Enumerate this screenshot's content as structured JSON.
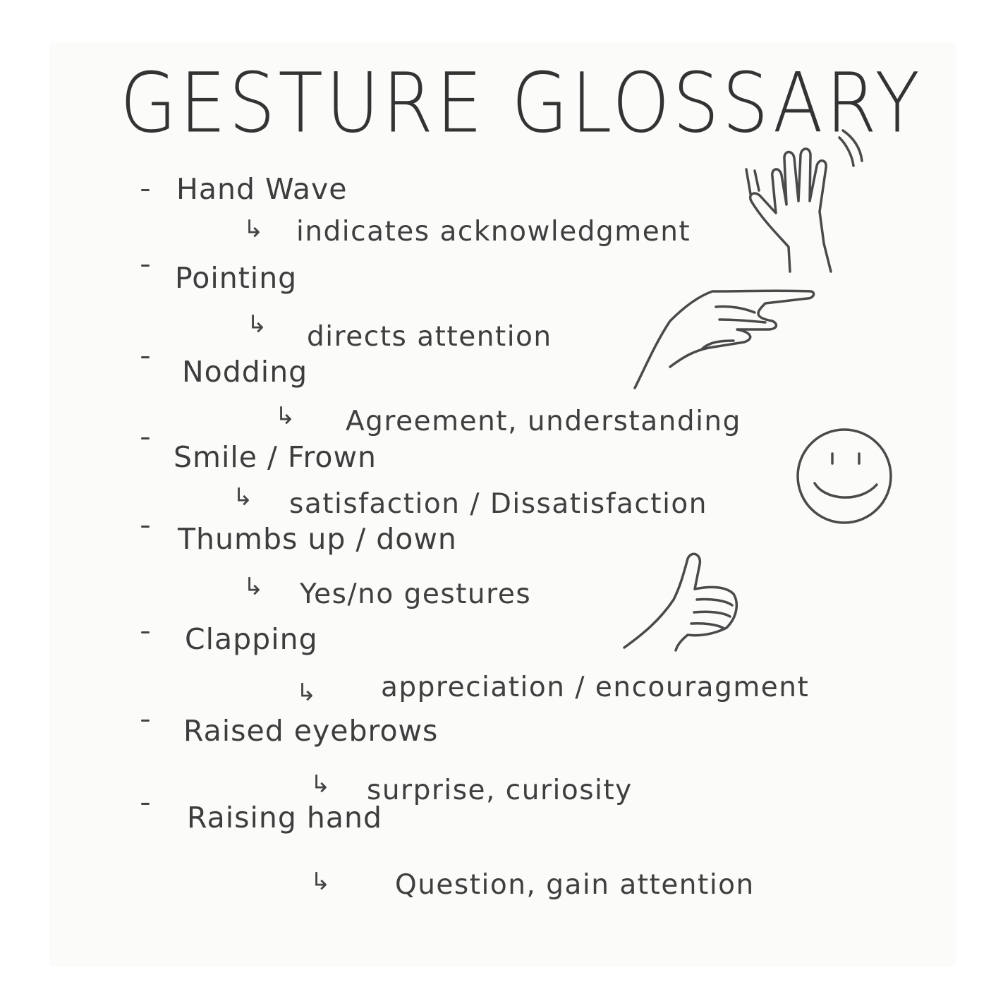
{
  "title": "GESTURE GLOSSARY",
  "entries": [
    {
      "term": "Hand Wave",
      "meaning": "indicates acknowledgment"
    },
    {
      "term": "Pointing",
      "meaning": "directs attention"
    },
    {
      "term": "Nodding",
      "meaning": "Agreement, understanding"
    },
    {
      "term": "Smile / Frown",
      "meaning": "satisfaction / Dissatisfaction"
    },
    {
      "term": "Thumbs up / down",
      "meaning": "Yes/no gestures"
    },
    {
      "term": "Clapping",
      "meaning": "appreciation / encouragment"
    },
    {
      "term": "Raised eyebrows",
      "meaning": "surprise, curiosity"
    },
    {
      "term": "Raising hand",
      "meaning": "Question, gain attention"
    }
  ],
  "arrow_glyph": "↳",
  "illustrations": [
    "waving-hand-icon",
    "pointing-hand-icon",
    "smiley-face-icon",
    "thumbs-up-icon"
  ]
}
